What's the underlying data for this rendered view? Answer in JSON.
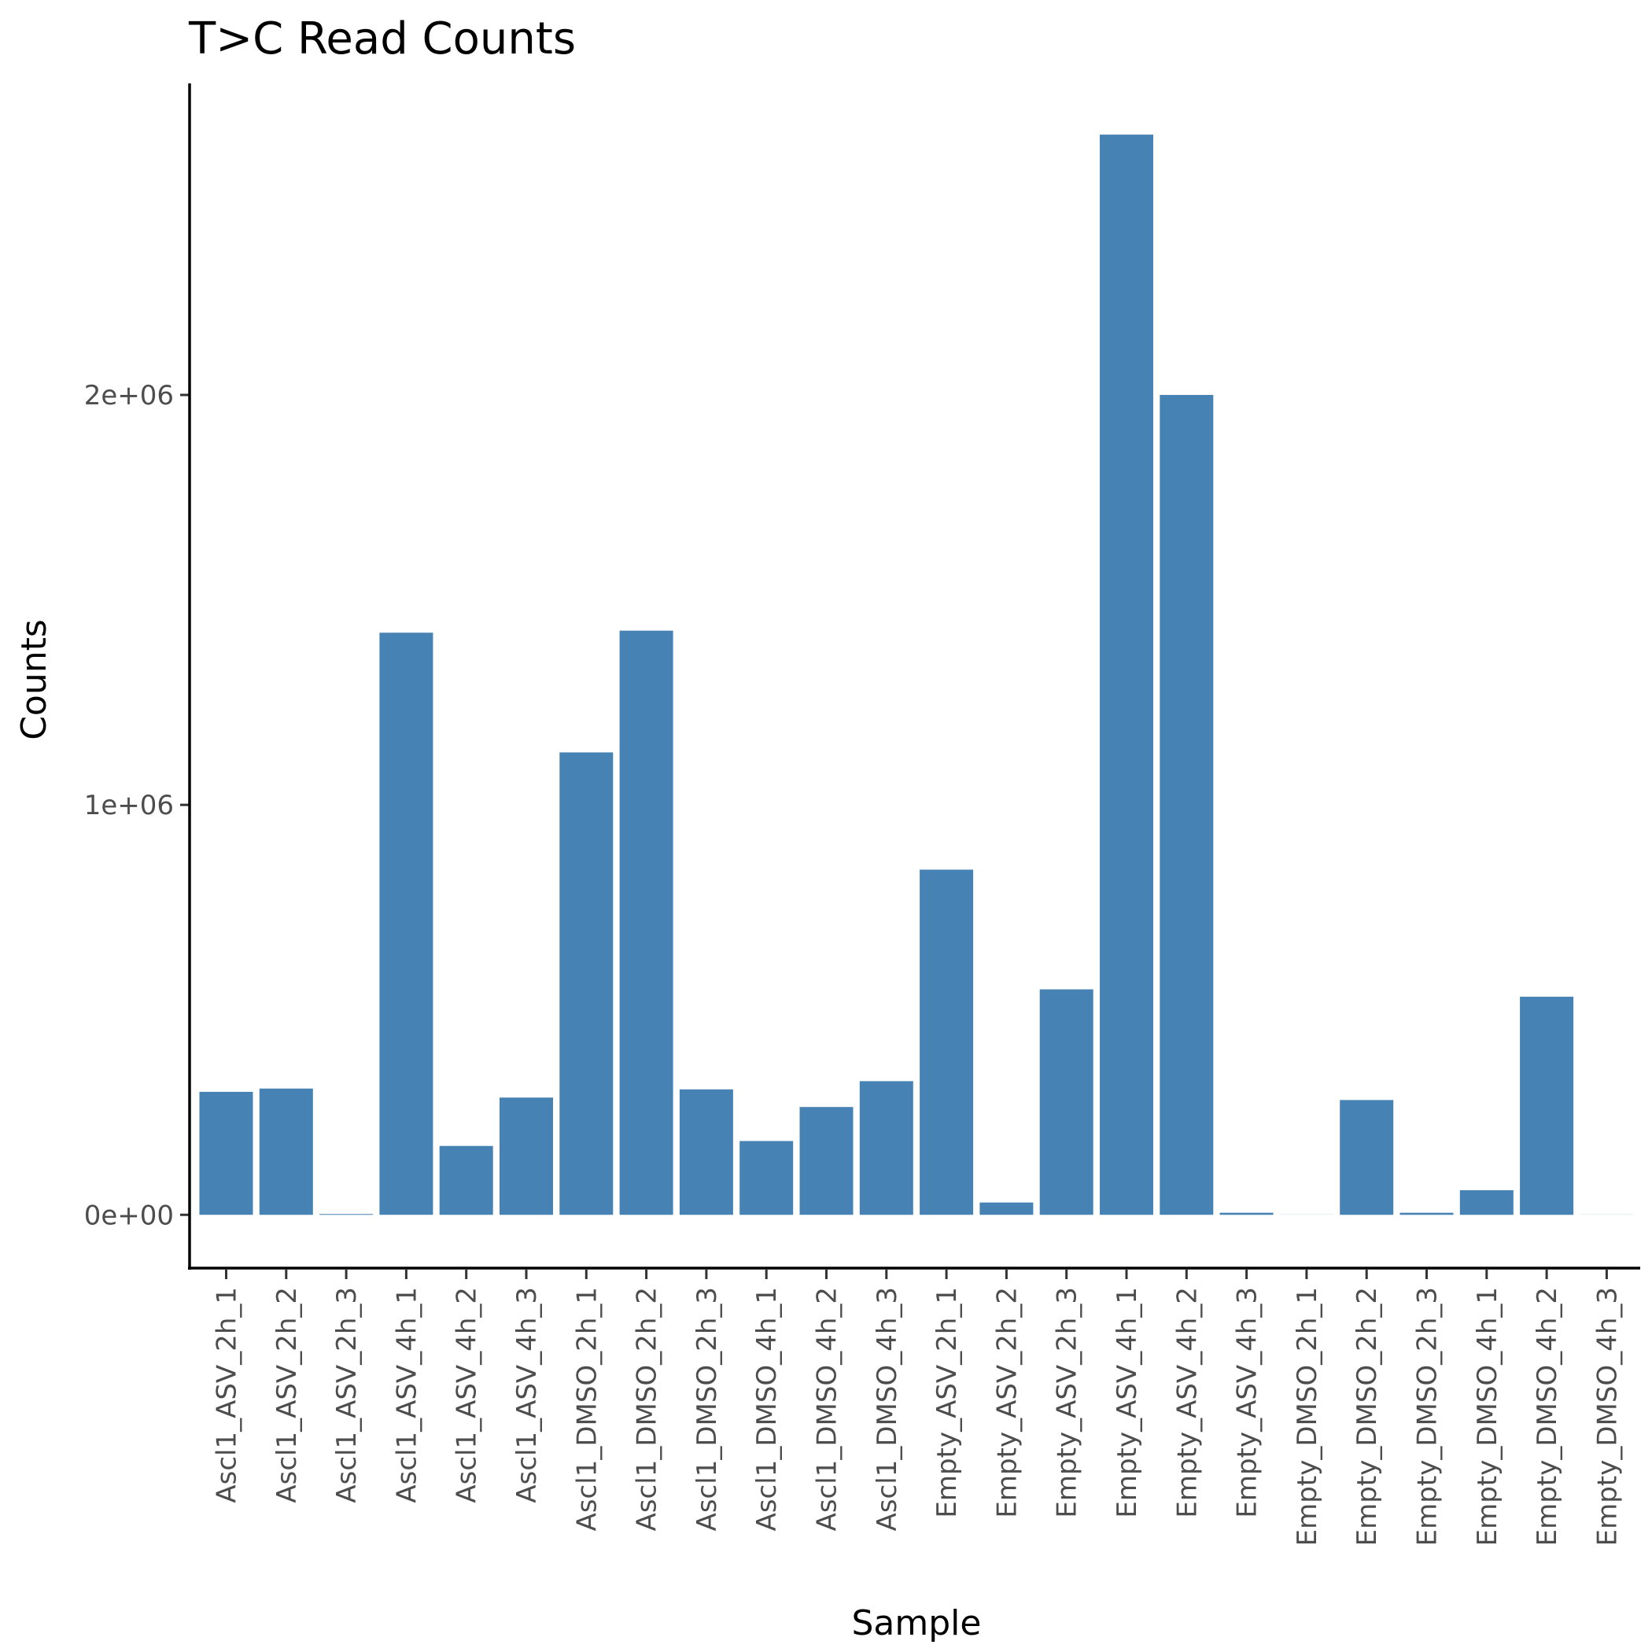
{
  "chart_data": {
    "type": "bar",
    "title": "T>C Read Counts",
    "xlabel": "Sample",
    "ylabel": "Counts",
    "categories": [
      "Ascl1_ASV_2h_1",
      "Ascl1_ASV_2h_2",
      "Ascl1_ASV_2h_3",
      "Ascl1_ASV_4h_1",
      "Ascl1_ASV_4h_2",
      "Ascl1_ASV_4h_3",
      "Ascl1_DMSO_2h_1",
      "Ascl1_DMSO_2h_2",
      "Ascl1_DMSO_2h_3",
      "Ascl1_DMSO_4h_1",
      "Ascl1_DMSO_4h_2",
      "Ascl1_DMSO_4h_3",
      "Empty_ASV_2h_1",
      "Empty_ASV_2h_2",
      "Empty_ASV_2h_3",
      "Empty_ASV_4h_1",
      "Empty_ASV_4h_2",
      "Empty_ASV_4h_3",
      "Empty_DMSO_2h_1",
      "Empty_DMSO_2h_2",
      "Empty_DMSO_2h_3",
      "Empty_DMSO_4h_1",
      "Empty_DMSO_4h_2",
      "Empty_DMSO_4h_3"
    ],
    "values": [
      300000,
      308000,
      1500,
      1420000,
      168000,
      286000,
      1128000,
      1425000,
      306000,
      180000,
      263000,
      326000,
      842000,
      30000,
      550000,
      2635000,
      2000000,
      5000,
      0,
      280000,
      5000,
      60000,
      532000,
      0
    ],
    "ylim": [
      -130000,
      2760000
    ],
    "yticks": [
      0,
      1000000,
      2000000
    ],
    "ytick_labels": [
      "0e+00",
      "1e+06",
      "2e+06"
    ],
    "bar_color": "#4682b4",
    "grid": false,
    "legend": "none"
  }
}
